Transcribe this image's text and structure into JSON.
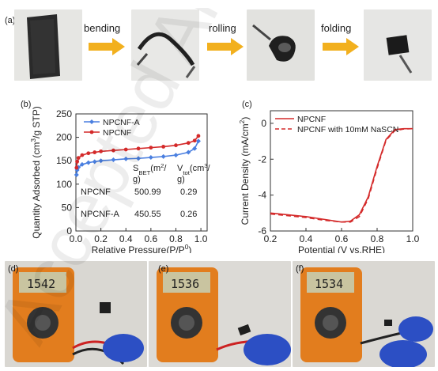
{
  "watermark_text": "Accepted Article",
  "panel_a": {
    "label": "(a)",
    "steps": [
      "bending",
      "rolling",
      "folding"
    ]
  },
  "panel_b": {
    "label": "(b)",
    "table": {
      "col1": [
        "S",
        "BET",
        "(m",
        "2",
        "/",
        "g)"
      ],
      "col2": [
        "V",
        "tot",
        "(cm",
        "3",
        "/",
        "g)"
      ],
      "rows": [
        {
          "name": "NPCNF",
          "sbet": "500.99",
          "vtot": "0.29"
        },
        {
          "name": "NPCNF-A",
          "sbet": "450.55",
          "vtot": "0.26"
        }
      ]
    }
  },
  "panel_c": {
    "label": "(c)"
  },
  "panel_d": {
    "label": "(d)",
    "reading": "1542"
  },
  "panel_e": {
    "label": "(e)",
    "reading": "1536"
  },
  "panel_f": {
    "label": "(f)",
    "reading": "1534"
  },
  "colors": {
    "arrow": "#f2b01e",
    "red": "#d42a2a",
    "blue": "#4a7fe0",
    "glove": "#2c4fc4"
  },
  "chart_data": [
    {
      "type": "line",
      "xlabel_parts": [
        "Relative Pressure(P/P",
        "0",
        ")"
      ],
      "ylabel_parts": [
        "Quantity Adsorbed (cm",
        "3",
        "/g STP)"
      ],
      "xlim": [
        0,
        1.05
      ],
      "ylim": [
        0,
        250
      ],
      "xticks": [
        "0.0",
        "0.2",
        "0.4",
        "0.6",
        "0.8",
        "1.0"
      ],
      "yticks": [
        "0",
        "50",
        "100",
        "150",
        "200",
        "250"
      ],
      "legend": "top-left",
      "series": [
        {
          "name": "NPCNF-A",
          "color": "#4a7fe0",
          "x": [
            0.005,
            0.01,
            0.02,
            0.05,
            0.1,
            0.15,
            0.2,
            0.3,
            0.4,
            0.5,
            0.6,
            0.7,
            0.8,
            0.9,
            0.95,
            0.98
          ],
          "y": [
            120,
            130,
            136,
            142,
            146,
            148,
            150,
            152,
            154,
            155,
            157,
            159,
            162,
            168,
            176,
            192
          ]
        },
        {
          "name": "NPCNF",
          "color": "#d42a2a",
          "x": [
            0.005,
            0.01,
            0.02,
            0.05,
            0.1,
            0.15,
            0.2,
            0.3,
            0.4,
            0.5,
            0.6,
            0.7,
            0.8,
            0.9,
            0.95,
            0.98
          ],
          "y": [
            135,
            148,
            156,
            162,
            166,
            168,
            170,
            172,
            174,
            176,
            178,
            180,
            183,
            188,
            193,
            203
          ]
        }
      ]
    },
    {
      "type": "line",
      "xlabel": "Potential (V vs.RHE)",
      "ylabel_parts": [
        "Current Density (mA/cm",
        "2",
        ")"
      ],
      "xlim": [
        0.2,
        1.0
      ],
      "ylim": [
        -6,
        0.7
      ],
      "xticks": [
        "0.2",
        "0.4",
        "0.6",
        "0.8",
        "1.0"
      ],
      "yticks": [
        "-6",
        "-4",
        "-2",
        "0"
      ],
      "legend": "top-left",
      "series": [
        {
          "name": "NPCNF",
          "color": "#d42a2a",
          "style": "solid",
          "x": [
            0.2,
            0.3,
            0.4,
            0.5,
            0.6,
            0.65,
            0.7,
            0.75,
            0.8,
            0.85,
            0.9,
            0.95,
            1.0
          ],
          "y": [
            -5.0,
            -5.1,
            -5.2,
            -5.35,
            -5.5,
            -5.45,
            -5.1,
            -4.1,
            -2.4,
            -0.9,
            -0.35,
            -0.3,
            -0.3
          ]
        },
        {
          "name": "NPCNF with 10mM NaSCN",
          "color": "#d42a2a",
          "style": "dashed",
          "x": [
            0.2,
            0.3,
            0.4,
            0.5,
            0.6,
            0.65,
            0.7,
            0.75,
            0.8,
            0.85,
            0.9,
            0.95,
            1.0
          ],
          "y": [
            -5.05,
            -5.15,
            -5.25,
            -5.4,
            -5.5,
            -5.5,
            -5.2,
            -4.2,
            -2.5,
            -0.95,
            -0.4,
            -0.32,
            -0.3
          ]
        }
      ]
    }
  ]
}
